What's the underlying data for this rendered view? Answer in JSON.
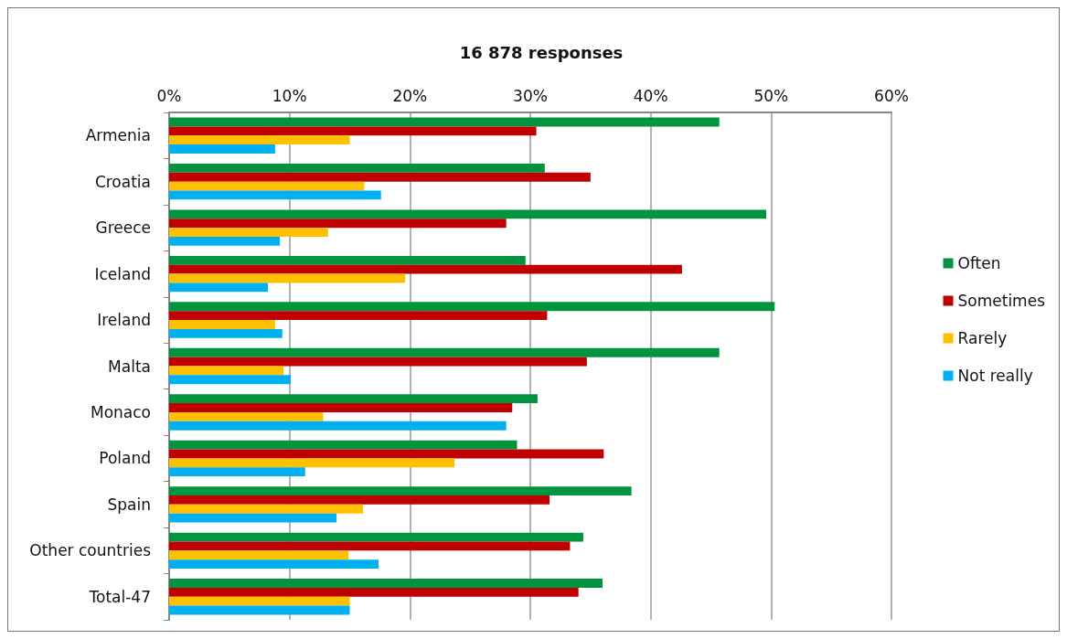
{
  "chart_data": {
    "type": "bar",
    "orientation": "horizontal",
    "title": "16 878 responses",
    "categories": [
      "Armenia",
      "Croatia",
      "Greece",
      "Iceland",
      "Ireland",
      "Malta",
      "Monaco",
      "Poland",
      "Spain",
      "Other countries",
      "Total-47"
    ],
    "series": [
      {
        "name": "Often",
        "color": "#00943f",
        "values": [
          45.7,
          31.2,
          49.6,
          29.6,
          50.3,
          45.7,
          30.6,
          28.9,
          38.4,
          34.4,
          36.0
        ]
      },
      {
        "name": "Sometimes",
        "color": "#c00000",
        "values": [
          30.5,
          35.0,
          28.0,
          42.6,
          31.4,
          34.7,
          28.5,
          36.1,
          31.6,
          33.3,
          34.0
        ]
      },
      {
        "name": "Rarely",
        "color": "#ffc000",
        "values": [
          15.0,
          16.2,
          13.2,
          19.6,
          8.8,
          9.5,
          12.8,
          23.7,
          16.1,
          14.9,
          15.0
        ]
      },
      {
        "name": "Not really",
        "color": "#00b0f0",
        "values": [
          8.8,
          17.6,
          9.2,
          8.2,
          9.4,
          10.1,
          28.0,
          11.3,
          13.9,
          17.4,
          15.0
        ]
      }
    ],
    "xlim": [
      0,
      60
    ],
    "xticks": [
      {
        "value": 0,
        "label": "0%"
      },
      {
        "value": 10,
        "label": "10%"
      },
      {
        "value": 20,
        "label": "20%"
      },
      {
        "value": 30,
        "label": "30%"
      },
      {
        "value": 40,
        "label": "40%"
      },
      {
        "value": 50,
        "label": "50%"
      },
      {
        "value": 60,
        "label": "60%"
      }
    ],
    "grid": "x",
    "legend": "right"
  }
}
